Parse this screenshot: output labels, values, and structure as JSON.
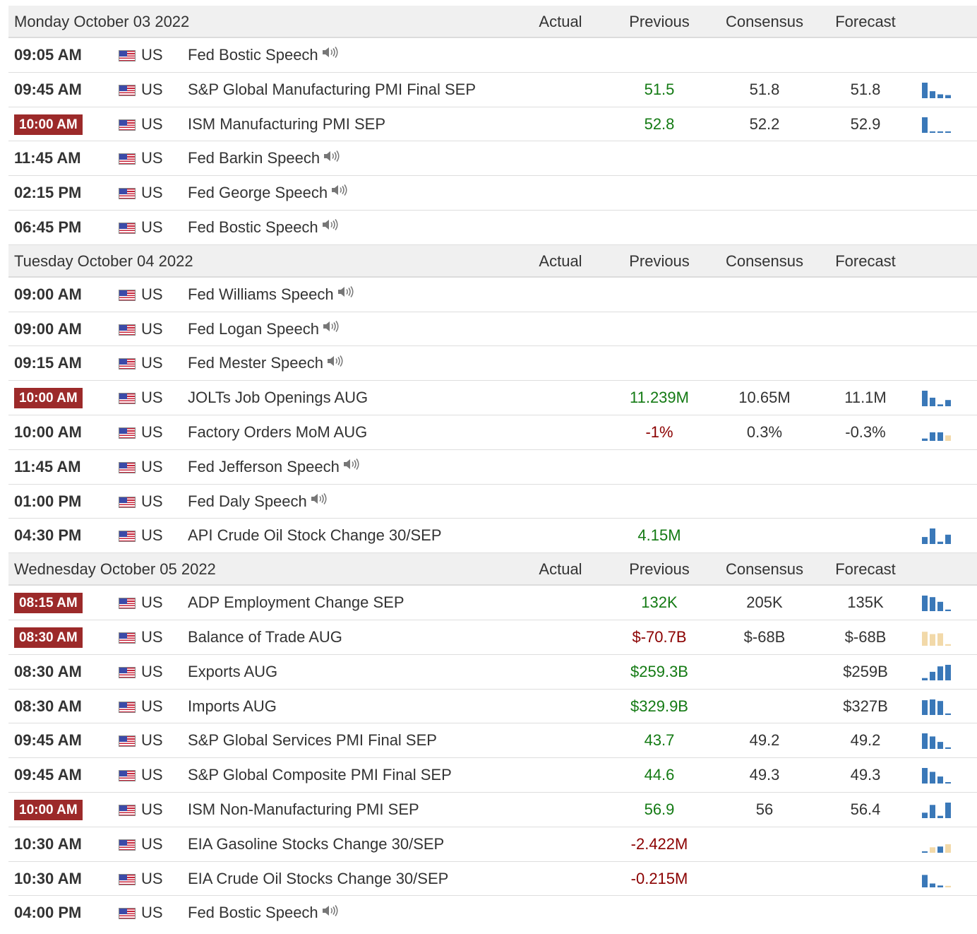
{
  "columns": {
    "actual": "Actual",
    "previous": "Previous",
    "consensus": "Consensus",
    "forecast": "Forecast"
  },
  "colors": {
    "highlight_time_bg": "#9c2a2a",
    "positive": "#137a13",
    "negative": "#8b0000",
    "spark_blue": "#3a78b8",
    "spark_tan": "#f2d9a9"
  },
  "days": [
    {
      "date": "Monday October 03 2022",
      "events": [
        {
          "time": "09:05 AM",
          "highlight": false,
          "country": "US",
          "event": "Fed Bostic Speech",
          "speech": true,
          "actual": "",
          "previous": "",
          "previous_color": "",
          "consensus": "",
          "forecast": "",
          "spark": null
        },
        {
          "time": "09:45 AM",
          "highlight": false,
          "country": "US",
          "event": "S&P Global Manufacturing PMI Final SEP",
          "speech": false,
          "actual": "",
          "previous": "51.5",
          "previous_color": "green",
          "consensus": "51.8",
          "forecast": "51.8",
          "spark": {
            "color": "blue",
            "bars": [
              1.0,
              0.45,
              0.25,
              0.2
            ]
          }
        },
        {
          "time": "10:00 AM",
          "highlight": true,
          "country": "US",
          "event": "ISM Manufacturing PMI SEP",
          "speech": false,
          "actual": "",
          "previous": "52.8",
          "previous_color": "green",
          "consensus": "52.2",
          "forecast": "52.9",
          "spark": {
            "color": "blue",
            "bars": [
              1.0,
              0.08,
              0.08,
              0.08
            ]
          }
        },
        {
          "time": "11:45 AM",
          "highlight": false,
          "country": "US",
          "event": "Fed Barkin Speech",
          "speech": true,
          "actual": "",
          "previous": "",
          "previous_color": "",
          "consensus": "",
          "forecast": "",
          "spark": null
        },
        {
          "time": "02:15 PM",
          "highlight": false,
          "country": "US",
          "event": "Fed George Speech",
          "speech": true,
          "actual": "",
          "previous": "",
          "previous_color": "",
          "consensus": "",
          "forecast": "",
          "spark": null
        },
        {
          "time": "06:45 PM",
          "highlight": false,
          "country": "US",
          "event": "Fed Bostic Speech",
          "speech": true,
          "actual": "",
          "previous": "",
          "previous_color": "",
          "consensus": "",
          "forecast": "",
          "spark": null
        }
      ]
    },
    {
      "date": "Tuesday October 04 2022",
      "events": [
        {
          "time": "09:00 AM",
          "highlight": false,
          "country": "US",
          "event": "Fed Williams Speech",
          "speech": true,
          "actual": "",
          "previous": "",
          "previous_color": "",
          "consensus": "",
          "forecast": "",
          "spark": null
        },
        {
          "time": "09:00 AM",
          "highlight": false,
          "country": "US",
          "event": "Fed Logan Speech",
          "speech": true,
          "actual": "",
          "previous": "",
          "previous_color": "",
          "consensus": "",
          "forecast": "",
          "spark": null
        },
        {
          "time": "09:15 AM",
          "highlight": false,
          "country": "US",
          "event": "Fed Mester Speech",
          "speech": true,
          "actual": "",
          "previous": "",
          "previous_color": "",
          "consensus": "",
          "forecast": "",
          "spark": null
        },
        {
          "time": "10:00 AM",
          "highlight": true,
          "country": "US",
          "event": "JOLTs Job Openings AUG",
          "speech": false,
          "actual": "",
          "previous": "11.239M",
          "previous_color": "green",
          "consensus": "10.65M",
          "forecast": "11.1M",
          "spark": {
            "color": "blue",
            "bars": [
              1.0,
              0.55,
              0.12,
              0.4
            ]
          }
        },
        {
          "time": "10:00 AM",
          "highlight": false,
          "country": "US",
          "event": "Factory Orders MoM AUG",
          "speech": false,
          "actual": "",
          "previous": "-1%",
          "previous_color": "red",
          "consensus": "0.3%",
          "forecast": "-0.3%",
          "spark": {
            "color": "mixed",
            "bars": [
              0.15,
              0.55,
              0.55,
              0.35
            ]
          }
        },
        {
          "time": "11:45 AM",
          "highlight": false,
          "country": "US",
          "event": "Fed Jefferson Speech",
          "speech": true,
          "actual": "",
          "previous": "",
          "previous_color": "",
          "consensus": "",
          "forecast": "",
          "spark": null
        },
        {
          "time": "01:00 PM",
          "highlight": false,
          "country": "US",
          "event": "Fed Daly Speech",
          "speech": true,
          "actual": "",
          "previous": "",
          "previous_color": "",
          "consensus": "",
          "forecast": "",
          "spark": null
        },
        {
          "time": "04:30 PM",
          "highlight": false,
          "country": "US",
          "event": "API Crude Oil Stock Change 30/SEP",
          "speech": false,
          "actual": "",
          "previous": "4.15M",
          "previous_color": "green",
          "consensus": "",
          "forecast": "",
          "spark": {
            "color": "blue",
            "bars": [
              0.45,
              1.0,
              0.15,
              0.6
            ]
          }
        }
      ]
    },
    {
      "date": "Wednesday October 05 2022",
      "events": [
        {
          "time": "08:15 AM",
          "highlight": true,
          "country": "US",
          "event": "ADP Employment Change SEP",
          "speech": false,
          "actual": "",
          "previous": "132K",
          "previous_color": "green",
          "consensus": "205K",
          "forecast": "135K",
          "spark": {
            "color": "blue",
            "bars": [
              1.0,
              0.9,
              0.6,
              0.1
            ]
          }
        },
        {
          "time": "08:30 AM",
          "highlight": true,
          "country": "US",
          "event": "Balance of Trade AUG",
          "speech": false,
          "actual": "",
          "previous": "$-70.7B",
          "previous_color": "red",
          "consensus": "$-68B",
          "forecast": "$-68B",
          "spark": {
            "color": "tan",
            "bars": [
              0.9,
              0.75,
              0.8,
              0.1
            ]
          }
        },
        {
          "time": "08:30 AM",
          "highlight": false,
          "country": "US",
          "event": "Exports AUG",
          "speech": false,
          "actual": "",
          "previous": "$259.3B",
          "previous_color": "green",
          "consensus": "",
          "forecast": "$259B",
          "spark": {
            "color": "blue",
            "bars": [
              0.15,
              0.55,
              0.9,
              1.0
            ]
          }
        },
        {
          "time": "08:30 AM",
          "highlight": false,
          "country": "US",
          "event": "Imports AUG",
          "speech": false,
          "actual": "",
          "previous": "$329.9B",
          "previous_color": "green",
          "consensus": "",
          "forecast": "$327B",
          "spark": {
            "color": "blue",
            "bars": [
              0.95,
              1.0,
              0.9,
              0.1
            ]
          }
        },
        {
          "time": "09:45 AM",
          "highlight": false,
          "country": "US",
          "event": "S&P Global Services PMI Final SEP",
          "speech": false,
          "actual": "",
          "previous": "43.7",
          "previous_color": "green",
          "consensus": "49.2",
          "forecast": "49.2",
          "spark": {
            "color": "blue",
            "bars": [
              1.0,
              0.8,
              0.45,
              0.1
            ]
          }
        },
        {
          "time": "09:45 AM",
          "highlight": false,
          "country": "US",
          "event": "S&P Global Composite PMI Final SEP",
          "speech": false,
          "actual": "",
          "previous": "44.6",
          "previous_color": "green",
          "consensus": "49.3",
          "forecast": "49.3",
          "spark": {
            "color": "blue",
            "bars": [
              1.0,
              0.75,
              0.45,
              0.08
            ]
          }
        },
        {
          "time": "10:00 AM",
          "highlight": true,
          "country": "US",
          "event": "ISM Non-Manufacturing PMI SEP",
          "speech": false,
          "actual": "",
          "previous": "56.9",
          "previous_color": "green",
          "consensus": "56",
          "forecast": "56.4",
          "spark": {
            "color": "blue",
            "bars": [
              0.35,
              0.85,
              0.15,
              1.0
            ]
          }
        },
        {
          "time": "10:30 AM",
          "highlight": false,
          "country": "US",
          "event": "EIA Gasoline Stocks Change 30/SEP",
          "speech": false,
          "actual": "",
          "previous": "-2.422M",
          "previous_color": "red",
          "consensus": "",
          "forecast": "",
          "spark": {
            "color": "mixed2",
            "bars": [
              0.08,
              0.35,
              0.4,
              0.55
            ]
          }
        },
        {
          "time": "10:30 AM",
          "highlight": false,
          "country": "US",
          "event": "EIA Crude Oil Stocks Change 30/SEP",
          "speech": false,
          "actual": "",
          "previous": "-0.215M",
          "previous_color": "red",
          "consensus": "",
          "forecast": "",
          "spark": {
            "color": "mixed3",
            "bars": [
              0.8,
              0.25,
              0.12,
              0.1
            ]
          }
        },
        {
          "time": "04:00 PM",
          "highlight": false,
          "country": "US",
          "event": "Fed Bostic Speech",
          "speech": true,
          "actual": "",
          "previous": "",
          "previous_color": "",
          "consensus": "",
          "forecast": "",
          "spark": null
        }
      ]
    }
  ]
}
